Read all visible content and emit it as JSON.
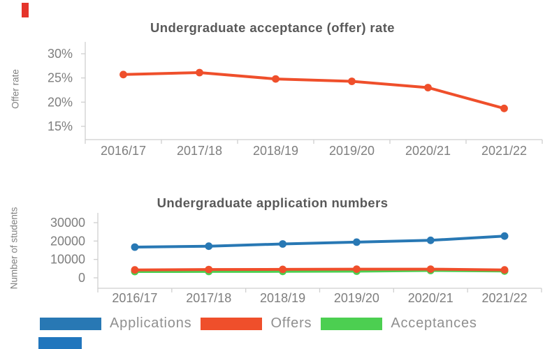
{
  "decorations": {
    "top_left_marker_color": "#e5342b",
    "bottom_left_bar_color": "#2176bd"
  },
  "legend": {
    "items": [
      {
        "label": "Applications",
        "color": "#2878b4"
      },
      {
        "label": "Offers",
        "color": "#ef4f2b"
      },
      {
        "label": "Acceptances",
        "color": "#4ccf51"
      }
    ]
  },
  "chart_data": [
    {
      "type": "line",
      "title": "Undergraduate acceptance (offer) rate",
      "xlabel": "",
      "ylabel": "Offer rate",
      "categories": [
        "2016/17",
        "2017/18",
        "2018/19",
        "2019/20",
        "2020/21",
        "2021/22"
      ],
      "series": [
        {
          "name": "Offer rate",
          "color": "#ef4f2b",
          "values": [
            25.7,
            26.1,
            24.8,
            24.3,
            23.0,
            18.7
          ]
        }
      ],
      "ytick_values": [
        30,
        25,
        20,
        15
      ],
      "ytick_labels": [
        "30%",
        "25%",
        "20%",
        "15%"
      ],
      "ylim": [
        12.5,
        32.5
      ],
      "grid": false,
      "legend_position": "none"
    },
    {
      "type": "line",
      "title": "Undergraduate application numbers",
      "xlabel": "",
      "ylabel": "Number of students",
      "categories": [
        "2016/17",
        "2017/18",
        "2018/19",
        "2019/20",
        "2020/21",
        "2021/22"
      ],
      "series": [
        {
          "name": "Applications",
          "color": "#2878b4",
          "values": [
            16700,
            17200,
            18400,
            19400,
            20400,
            22700
          ]
        },
        {
          "name": "Offers",
          "color": "#ef4f2b",
          "values": [
            4300,
            4500,
            4600,
            4700,
            4700,
            4300
          ]
        },
        {
          "name": "Acceptances",
          "color": "#4ccf51",
          "values": [
            3400,
            3450,
            3500,
            3600,
            4000,
            3700
          ]
        }
      ],
      "ytick_values": [
        30000,
        20000,
        10000,
        0
      ],
      "ytick_labels": [
        "30000",
        "20000",
        "10000",
        "0"
      ],
      "ylim": [
        -5700,
        35500
      ],
      "grid": false,
      "legend_position": "bottom"
    }
  ]
}
